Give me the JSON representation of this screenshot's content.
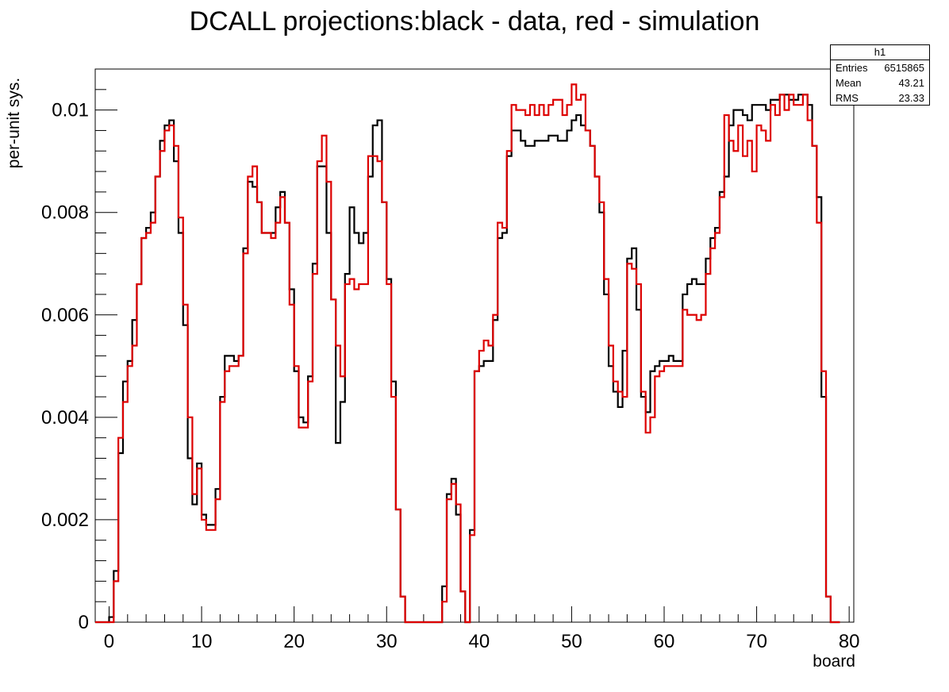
{
  "chart_data": {
    "type": "step",
    "title": "DCALL projections:black - data, red - simulation",
    "xlabel": "board",
    "ylabel": "per-unit sys.",
    "xlim": [
      -1.5,
      80.5
    ],
    "ylim": [
      0,
      0.0108
    ],
    "bin_width": 0.5,
    "x_ticks": [
      0,
      10,
      20,
      30,
      40,
      50,
      60,
      70,
      80
    ],
    "x_tick_labels": [
      "0",
      "10",
      "20",
      "30",
      "40",
      "50",
      "60",
      "70",
      "80"
    ],
    "y_ticks": [
      0,
      0.002,
      0.004,
      0.006,
      0.008,
      0.01
    ],
    "y_tick_labels": [
      "0",
      "0.002",
      "0.004",
      "0.006",
      "0.008",
      "0.01"
    ],
    "series": [
      {
        "color": "#000000",
        "x0": -1.5,
        "values": [
          0,
          0,
          0,
          0.0001,
          0.001,
          0.0033,
          0.0047,
          0.0051,
          0.0059,
          0.0066,
          0.0075,
          0.0077,
          0.008,
          0.0087,
          0.0094,
          0.0097,
          0.0098,
          0.009,
          0.0076,
          0.0058,
          0.0032,
          0.0023,
          0.0031,
          0.0021,
          0.0019,
          0.0019,
          0.0026,
          0.0044,
          0.0052,
          0.0052,
          0.0051,
          0.0052,
          0.0073,
          0.0086,
          0.0085,
          0.0082,
          0.0076,
          0.0076,
          0.0076,
          0.0081,
          0.0084,
          0.0078,
          0.0065,
          0.0049,
          0.004,
          0.0039,
          0.0048,
          0.007,
          0.0089,
          0.0089,
          0.0076,
          0.0063,
          0.0035,
          0.0043,
          0.0068,
          0.0081,
          0.0076,
          0.0074,
          0.0076,
          0.0087,
          0.0097,
          0.0098,
          0.0082,
          0.0067,
          0.0047,
          0.0022,
          0.0005,
          0,
          0,
          0,
          0,
          0,
          0,
          0,
          0,
          0.0007,
          0.0025,
          0.0028,
          0.0021,
          0.0006,
          0,
          0.0018,
          0.0049,
          0.005,
          0.0051,
          0.0051,
          0.0059,
          0.0075,
          0.0076,
          0.0091,
          0.0096,
          0.0096,
          0.0094,
          0.0093,
          0.0093,
          0.0094,
          0.0094,
          0.0094,
          0.0095,
          0.0095,
          0.0094,
          0.0094,
          0.0096,
          0.0098,
          0.0099,
          0.0097,
          0.0096,
          0.0093,
          0.0087,
          0.008,
          0.0064,
          0.005,
          0.0045,
          0.0042,
          0.0053,
          0.0071,
          0.0073,
          0.0061,
          0.0044,
          0.0041,
          0.0049,
          0.005,
          0.0051,
          0.0051,
          0.0052,
          0.0051,
          0.0051,
          0.0064,
          0.0066,
          0.0067,
          0.0066,
          0.0066,
          0.0071,
          0.0075,
          0.0077,
          0.0084,
          0.0087,
          0.0097,
          0.01,
          0.01,
          0.0099,
          0.0098,
          0.0101,
          0.0101,
          0.0101,
          0.01,
          0.0102,
          0.0102,
          0.0103,
          0.0103,
          0.0102,
          0.0102,
          0.0103,
          0.0103,
          0.0101,
          0.0093,
          0.0083,
          0.0044,
          0.0005,
          0,
          0
        ]
      },
      {
        "color": "#dd0000",
        "x0": -1.5,
        "values": [
          0,
          0,
          0,
          0,
          0.0008,
          0.0036,
          0.0043,
          0.005,
          0.0054,
          0.0066,
          0.0075,
          0.0076,
          0.0078,
          0.0087,
          0.0092,
          0.0096,
          0.0097,
          0.0093,
          0.0079,
          0.0062,
          0.004,
          0.0025,
          0.003,
          0.002,
          0.0018,
          0.0018,
          0.0024,
          0.0043,
          0.0049,
          0.005,
          0.005,
          0.0052,
          0.0072,
          0.0087,
          0.0089,
          0.0082,
          0.0076,
          0.0076,
          0.0075,
          0.0078,
          0.0083,
          0.0078,
          0.0062,
          0.005,
          0.0038,
          0.0038,
          0.0047,
          0.0068,
          0.009,
          0.0095,
          0.0086,
          0.0063,
          0.0054,
          0.0048,
          0.0066,
          0.0067,
          0.0065,
          0.0066,
          0.0066,
          0.0091,
          0.0091,
          0.009,
          0.0082,
          0.0066,
          0.0044,
          0.0022,
          0.0005,
          0,
          0,
          0,
          0,
          0,
          0,
          0,
          0,
          0.0004,
          0.0024,
          0.0027,
          0.0023,
          0.0006,
          0,
          0.0017,
          0.0049,
          0.0053,
          0.0055,
          0.0054,
          0.006,
          0.0078,
          0.0077,
          0.0092,
          0.0101,
          0.01,
          0.01,
          0.0099,
          0.0101,
          0.0099,
          0.0101,
          0.0099,
          0.0101,
          0.0102,
          0.0102,
          0.0099,
          0.0101,
          0.0105,
          0.0102,
          0.0103,
          0.0096,
          0.0093,
          0.0087,
          0.0082,
          0.0067,
          0.0054,
          0.0047,
          0.0045,
          0.0044,
          0.007,
          0.0069,
          0.0066,
          0.0045,
          0.0037,
          0.004,
          0.0048,
          0.0049,
          0.005,
          0.005,
          0.005,
          0.005,
          0.0061,
          0.006,
          0.006,
          0.0059,
          0.006,
          0.0068,
          0.0073,
          0.0076,
          0.0083,
          0.0099,
          0.0094,
          0.0092,
          0.0097,
          0.0091,
          0.0094,
          0.0088,
          0.0097,
          0.0096,
          0.0094,
          0.0101,
          0.0099,
          0.0103,
          0.01,
          0.0103,
          0.0101,
          0.0101,
          0.0103,
          0.0098,
          0.0093,
          0.0078,
          0.0049,
          0.0005,
          0,
          0
        ]
      }
    ]
  },
  "stats": {
    "title": "h1",
    "entries_label": "Entries",
    "entries_value": "6515865",
    "mean_label": "Mean",
    "mean_value": "43.21",
    "rms_label": "RMS",
    "rms_value": "23.33"
  }
}
